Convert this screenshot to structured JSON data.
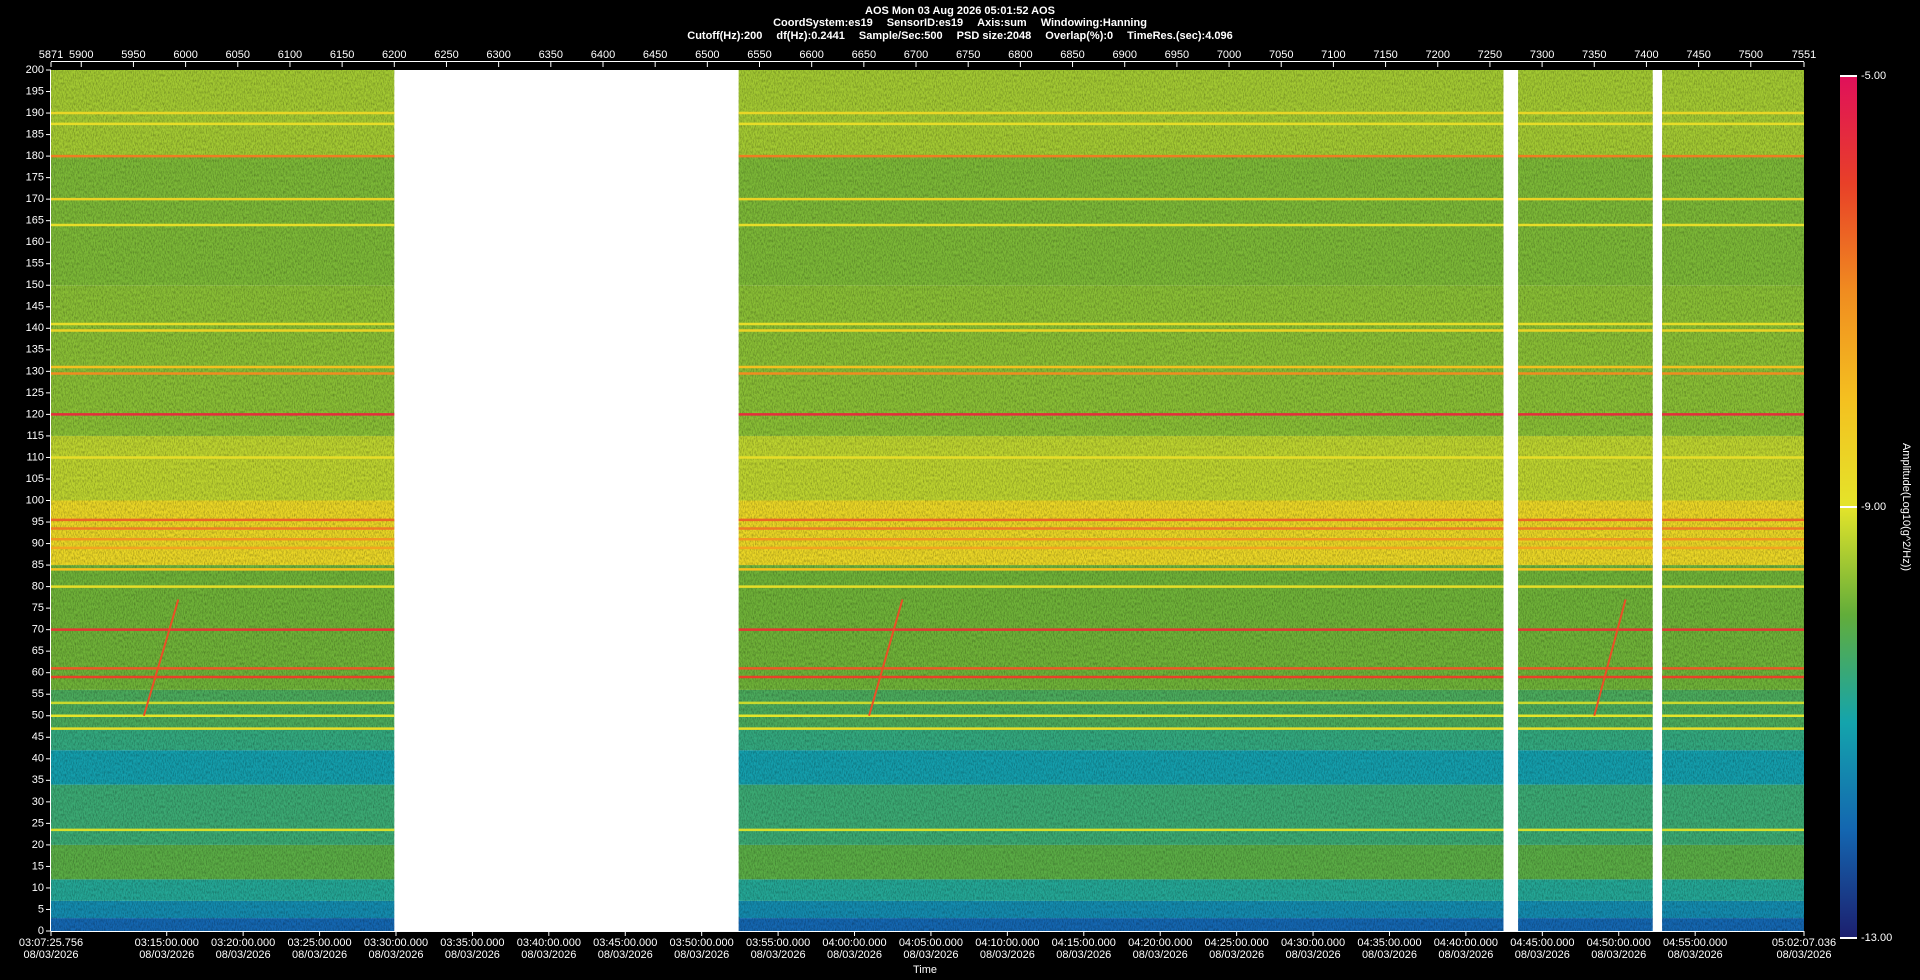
{
  "chart_data": {
    "type": "spectrogram",
    "header_rows": [
      [
        "AOS  Mon 03 Aug 2026 05:01:52  AOS"
      ],
      [
        "CoordSystem:es19",
        "SensorID:es19",
        "Axis:sum",
        "Windowing:Hanning"
      ],
      [
        "Cutoff(Hz):200",
        "df(Hz):0.2441",
        "Sample/Sec:500",
        "PSD size:2048",
        "Overlap(%):0",
        "TimeRes.(sec):4.096"
      ]
    ],
    "x_label": "Time",
    "colorbar_label": "Amplitude(Log10(g^2/Hz))",
    "xlim": [
      5871,
      7551
    ],
    "xticks": [
      5871,
      5900,
      5950,
      6000,
      6050,
      6100,
      6150,
      6200,
      6250,
      6300,
      6350,
      6400,
      6450,
      6500,
      6550,
      6600,
      6650,
      6700,
      6750,
      6800,
      6850,
      6900,
      6950,
      7000,
      7050,
      7100,
      7150,
      7200,
      7250,
      7300,
      7350,
      7400,
      7450,
      7500,
      7551
    ],
    "time_ticks": [
      {
        "value": 5871,
        "label": "03:07:25.756"
      },
      {
        "value": 5981.9,
        "label": "03:15:00.000"
      },
      {
        "value": 6055.14,
        "label": "03:20:00.000"
      },
      {
        "value": 6128.38,
        "label": "03:25:00.000"
      },
      {
        "value": 6201.62,
        "label": "03:30:00.000"
      },
      {
        "value": 6274.86,
        "label": "03:35:00.000"
      },
      {
        "value": 6348.1,
        "label": "03:40:00.000"
      },
      {
        "value": 6421.34,
        "label": "03:45:00.000"
      },
      {
        "value": 6494.58,
        "label": "03:50:00.000"
      },
      {
        "value": 6567.82,
        "label": "03:55:00.000"
      },
      {
        "value": 6641.06,
        "label": "04:00:00.000"
      },
      {
        "value": 6714.3,
        "label": "04:05:00.000"
      },
      {
        "value": 6787.54,
        "label": "04:10:00.000"
      },
      {
        "value": 6860.78,
        "label": "04:15:00.000"
      },
      {
        "value": 6934.02,
        "label": "04:20:00.000"
      },
      {
        "value": 7007.26,
        "label": "04:25:00.000"
      },
      {
        "value": 7080.5,
        "label": "04:30:00.000"
      },
      {
        "value": 7153.74,
        "label": "04:35:00.000"
      },
      {
        "value": 7226.98,
        "label": "04:40:00.000"
      },
      {
        "value": 7300.22,
        "label": "04:45:00.000"
      },
      {
        "value": 7373.46,
        "label": "04:50:00.000"
      },
      {
        "value": 7446.7,
        "label": "04:55:00.000"
      },
      {
        "value": 7551,
        "label": "05:02:07.036"
      }
    ],
    "time_tick_dates": [
      "08/03/2026",
      "08/03/2026",
      "08/03/2026",
      "08/03/2026",
      "08/03/2026",
      "08/03/2026",
      "08/03/2026",
      "08/03/2026",
      "08/03/2026",
      "08/03/2026",
      "08/03/2026",
      "08/03/2026",
      "08/03/2026",
      "08/03/2026",
      "08/03/2026",
      "08/03/2026",
      "08/03/2026",
      "08/03/2026",
      "08/03/2026",
      "08/03/2026",
      "08/03/2026",
      "08/03/2026",
      "08/03/2026"
    ],
    "ylim": [
      0,
      200
    ],
    "yticks": [
      0,
      5,
      10,
      15,
      20,
      25,
      30,
      35,
      40,
      45,
      50,
      55,
      60,
      65,
      70,
      75,
      80,
      85,
      90,
      95,
      100,
      105,
      110,
      115,
      120,
      125,
      130,
      135,
      140,
      145,
      150,
      155,
      160,
      165,
      170,
      175,
      180,
      185,
      190,
      195,
      200
    ],
    "colorlim": [
      -13,
      -5
    ],
    "colorticks": [
      {
        "value": -5,
        "label": "-5.00"
      },
      {
        "value": -9,
        "label": "-9.00"
      },
      {
        "value": -13,
        "label": "-13.00"
      }
    ],
    "colormap": [
      "#1c1f6e",
      "#1466b0",
      "#14a4ac",
      "#62ad3a",
      "#e4e42a",
      "#f4c020",
      "#f08c20",
      "#e84028",
      "#e0105a"
    ],
    "data_segments": [
      [
        5871,
        6200
      ],
      [
        6530,
        7263
      ],
      [
        7277,
        7406
      ],
      [
        7415,
        7551
      ]
    ],
    "bands": [
      {
        "f0": 0,
        "f1": 3,
        "amp": -12.0
      },
      {
        "f0": 3,
        "f1": 7,
        "amp": -11.4
      },
      {
        "f0": 7,
        "f1": 12,
        "amp": -10.8
      },
      {
        "f0": 12,
        "f1": 20,
        "amp": -10.1
      },
      {
        "f0": 20,
        "f1": 34,
        "amp": -10.5
      },
      {
        "f0": 34,
        "f1": 42,
        "amp": -11.1
      },
      {
        "f0": 42,
        "f1": 47,
        "amp": -10.6
      },
      {
        "f0": 47,
        "f1": 56,
        "amp": -10.3
      },
      {
        "f0": 56,
        "f1": 85,
        "amp": -9.9
      },
      {
        "f0": 85,
        "f1": 100,
        "amp": -8.6
      },
      {
        "f0": 100,
        "f1": 115,
        "amp": -9.3
      },
      {
        "f0": 115,
        "f1": 150,
        "amp": -9.7
      },
      {
        "f0": 150,
        "f1": 180,
        "amp": -9.8
      },
      {
        "f0": 180,
        "f1": 200,
        "amp": -9.5
      }
    ],
    "tones": [
      {
        "freq": 23.5,
        "amp": -9.1
      },
      {
        "freq": 47,
        "amp": -8.8
      },
      {
        "freq": 50,
        "amp": -9.0
      },
      {
        "freq": 53,
        "amp": -9.2
      },
      {
        "freq": 59,
        "amp": -6.0
      },
      {
        "freq": 61,
        "amp": -6.3
      },
      {
        "freq": 70,
        "amp": -5.8
      },
      {
        "freq": 80,
        "amp": -8.8
      },
      {
        "freq": 84,
        "amp": -8.0
      },
      {
        "freq": 89,
        "amp": -7.5
      },
      {
        "freq": 91,
        "amp": -7.2
      },
      {
        "freq": 93.5,
        "amp": -6.8
      },
      {
        "freq": 95.5,
        "amp": -6.5
      },
      {
        "freq": 110,
        "amp": -8.8
      },
      {
        "freq": 120,
        "amp": -5.6
      },
      {
        "freq": 129.5,
        "amp": -7.0
      },
      {
        "freq": 131,
        "amp": -8.0
      },
      {
        "freq": 139.5,
        "amp": -8.5
      },
      {
        "freq": 141,
        "amp": -8.8
      },
      {
        "freq": 164,
        "amp": -8.8
      },
      {
        "freq": 170,
        "amp": -8.5
      },
      {
        "freq": 180,
        "amp": -6.8
      },
      {
        "freq": 187.5,
        "amp": -8.8
      },
      {
        "freq": 190,
        "amp": -8.6
      }
    ],
    "chirps": [
      {
        "t": [
          5960,
          5993
        ],
        "f": [
          50,
          77
        ],
        "amp": -6.2
      },
      {
        "t": [
          6655,
          6687
        ],
        "f": [
          50,
          77
        ],
        "amp": -6.2
      },
      {
        "t": [
          7350,
          7380
        ],
        "f": [
          50,
          77
        ],
        "amp": -6.2
      }
    ]
  }
}
